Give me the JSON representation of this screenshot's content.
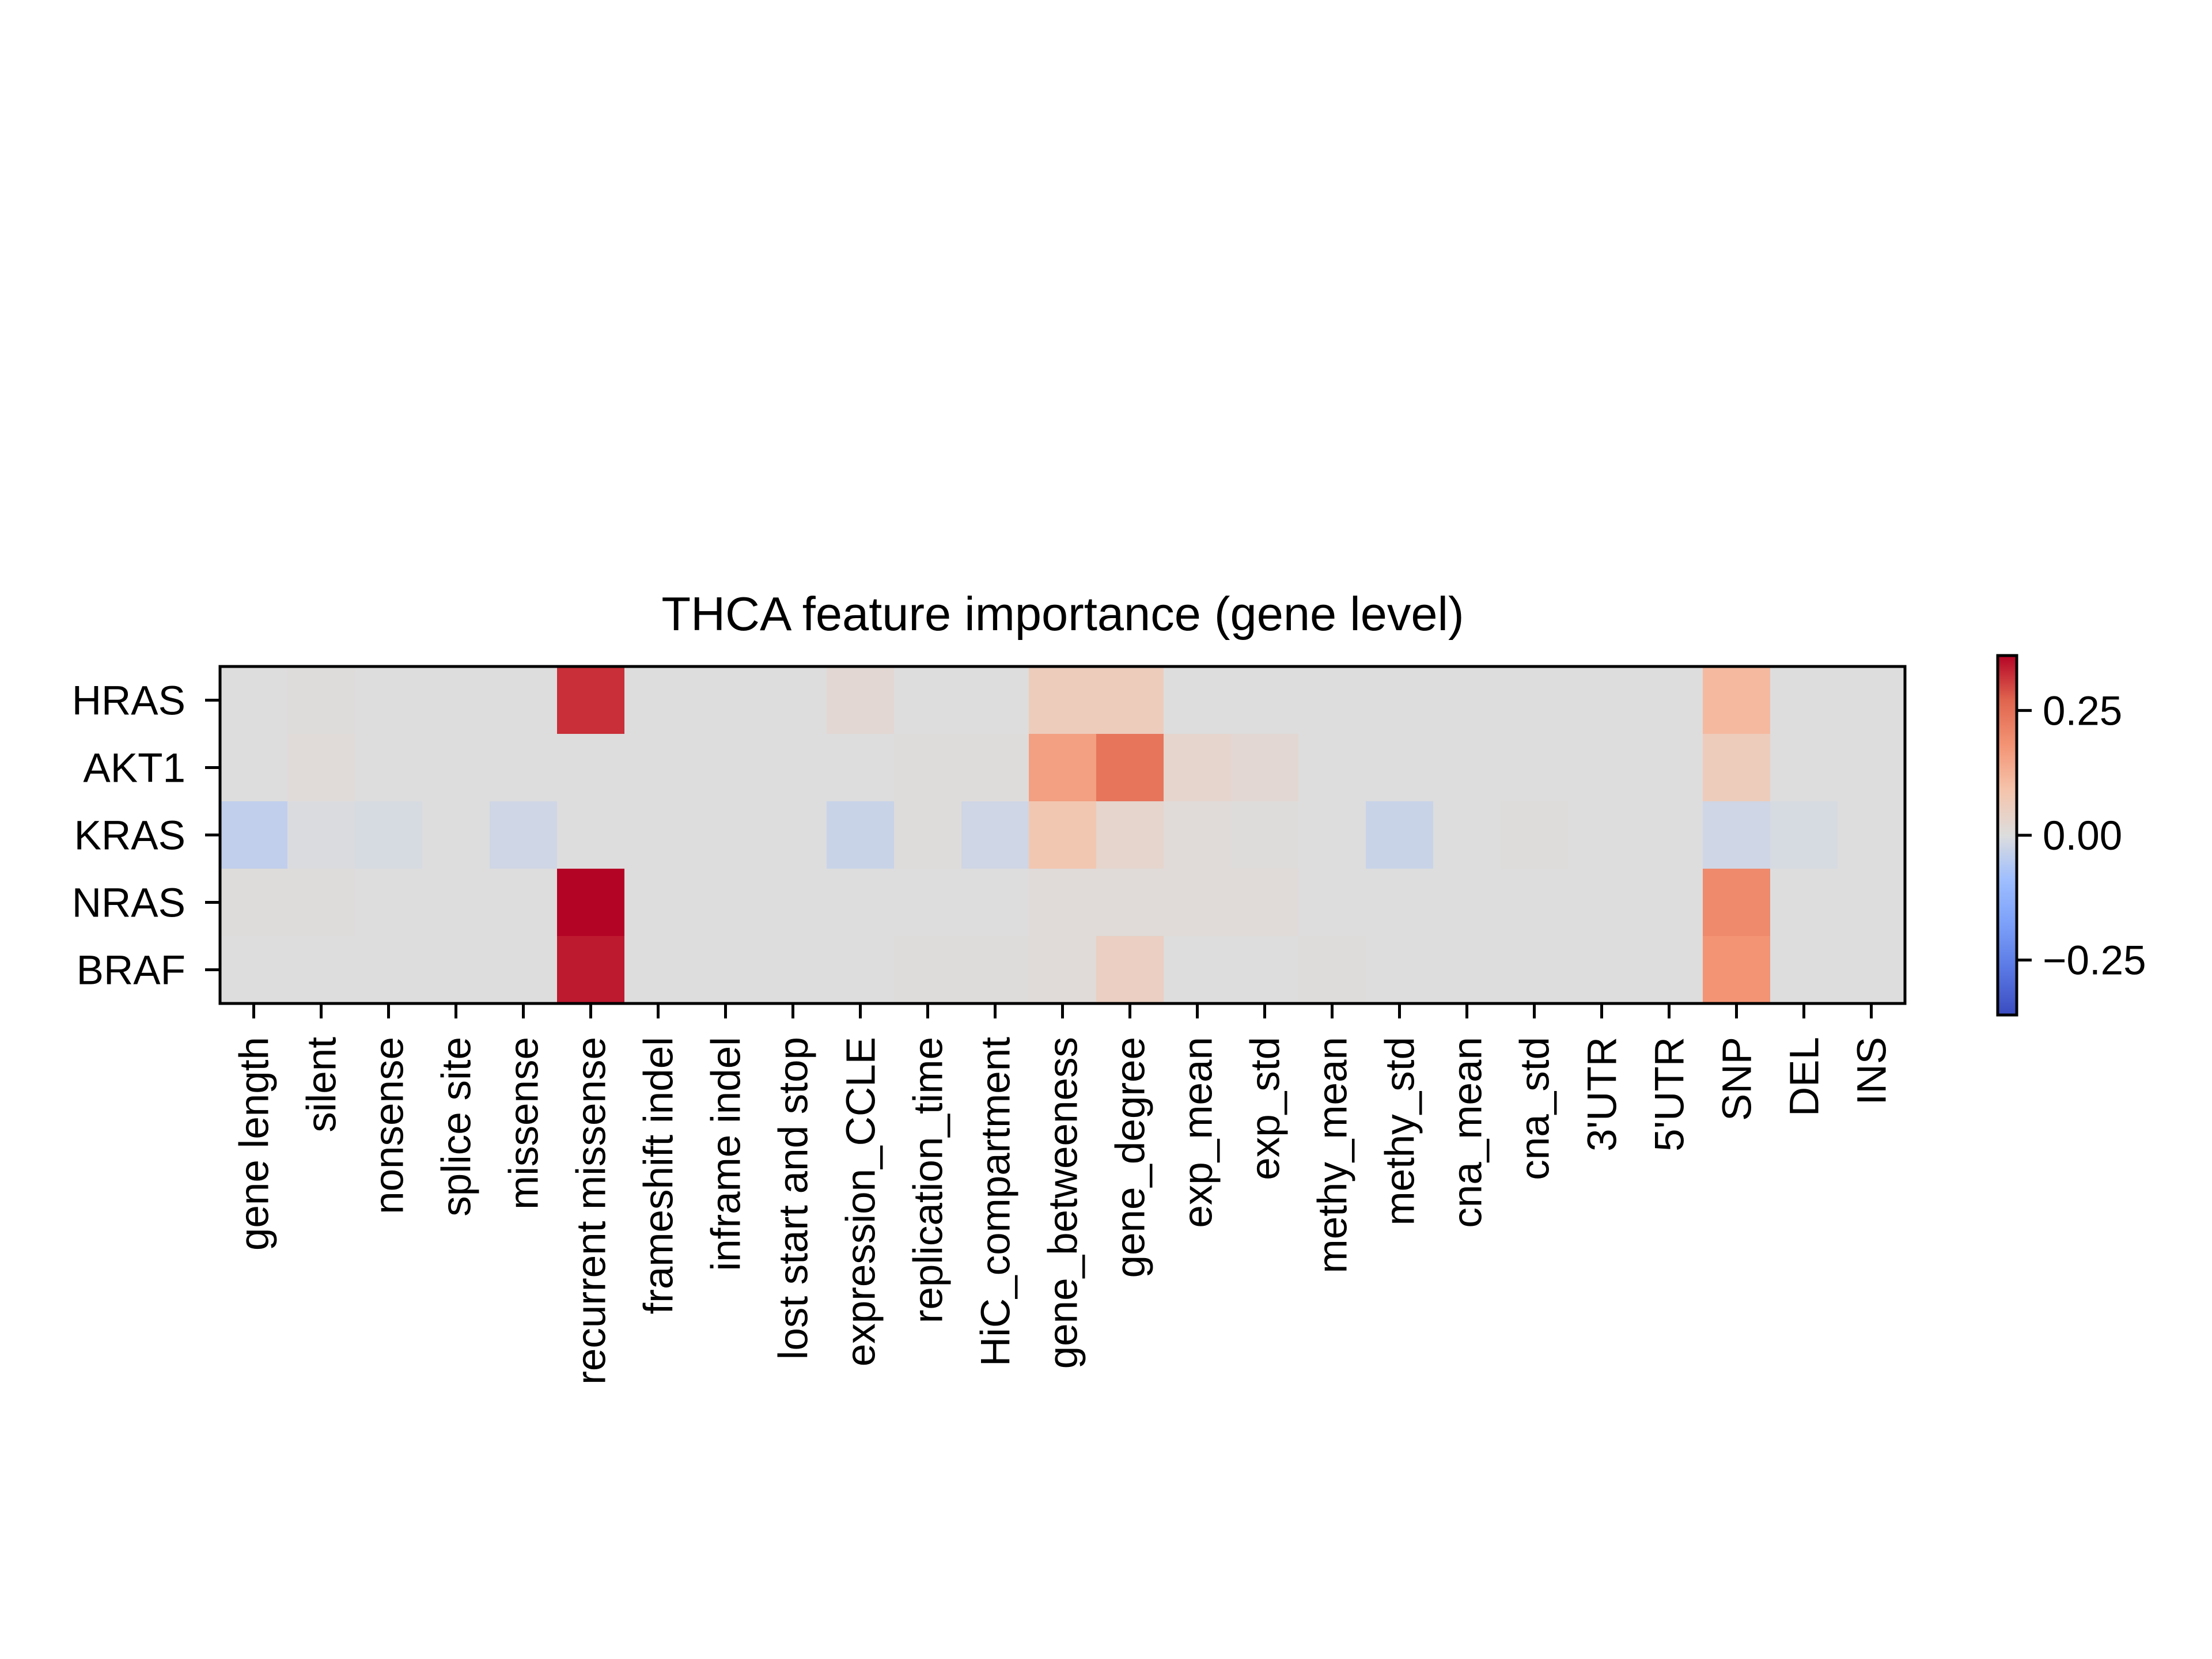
{
  "chart_data": {
    "type": "heatmap",
    "title": "THCA feature importance (gene level)",
    "xlabel": "",
    "ylabel": "",
    "rows": [
      "HRAS",
      "AKT1",
      "KRAS",
      "NRAS",
      "BRAF"
    ],
    "columns": [
      "gene length",
      "silent",
      "nonsense",
      "splice site",
      "missense",
      "recurrent missense",
      "frameshift indel",
      "inframe indel",
      "lost start and stop",
      "expression_CCLE",
      "replication_time",
      "HiC_compartment",
      "gene_betweeness",
      "gene_degree",
      "exp_mean",
      "exp_std",
      "methy_mean",
      "methy_std",
      "cna_mean",
      "cna_std",
      "3'UTR",
      "5'UTR",
      "SNP",
      "DEL",
      "INS"
    ],
    "values": [
      [
        0.0,
        0.005,
        0.0,
        0.0,
        0.0,
        0.32,
        0.0,
        0.0,
        0.0,
        0.02,
        0.0,
        0.0,
        0.06,
        0.06,
        0.0,
        0.0,
        0.0,
        0.0,
        0.0,
        0.0,
        0.0,
        0.0,
        0.11,
        0.0,
        0.0
      ],
      [
        0.0,
        0.01,
        0.0,
        0.0,
        0.0,
        0.0,
        0.0,
        0.0,
        0.0,
        0.0,
        0.005,
        0.005,
        0.16,
        0.24,
        0.03,
        0.02,
        0.0,
        0.0,
        0.0,
        0.0,
        0.0,
        0.0,
        0.06,
        0.0,
        0.0
      ],
      [
        -0.04,
        -0.005,
        -0.01,
        0.0,
        -0.02,
        0.0,
        0.0,
        0.0,
        0.0,
        -0.03,
        0.005,
        -0.02,
        0.08,
        0.03,
        0.01,
        0.005,
        0.0,
        -0.03,
        0.0,
        0.005,
        0.0,
        0.0,
        -0.02,
        -0.01,
        0.0
      ],
      [
        0.005,
        0.005,
        0.0,
        0.0,
        0.0,
        0.36,
        0.0,
        0.0,
        0.0,
        0.0,
        0.0,
        0.0,
        0.01,
        0.01,
        0.01,
        0.01,
        0.0,
        0.0,
        0.0,
        0.0,
        0.0,
        0.0,
        0.2,
        0.0,
        0.0
      ],
      [
        0.0,
        0.0,
        0.0,
        0.0,
        0.0,
        0.34,
        0.0,
        0.0,
        0.0,
        0.0,
        0.005,
        0.005,
        0.01,
        0.05,
        0.0,
        0.0,
        0.005,
        0.0,
        0.0,
        0.0,
        0.0,
        0.0,
        0.18,
        0.0,
        0.0
      ]
    ],
    "colormap": "coolwarm",
    "vmin": -0.36,
    "vmax": 0.36,
    "colorbar_ticks": [
      0.25,
      0.0,
      -0.25
    ],
    "colorbar_tick_labels": [
      "0.25",
      "0.00",
      "−0.25"
    ],
    "colorbar_placement": "right",
    "grid": false
  }
}
